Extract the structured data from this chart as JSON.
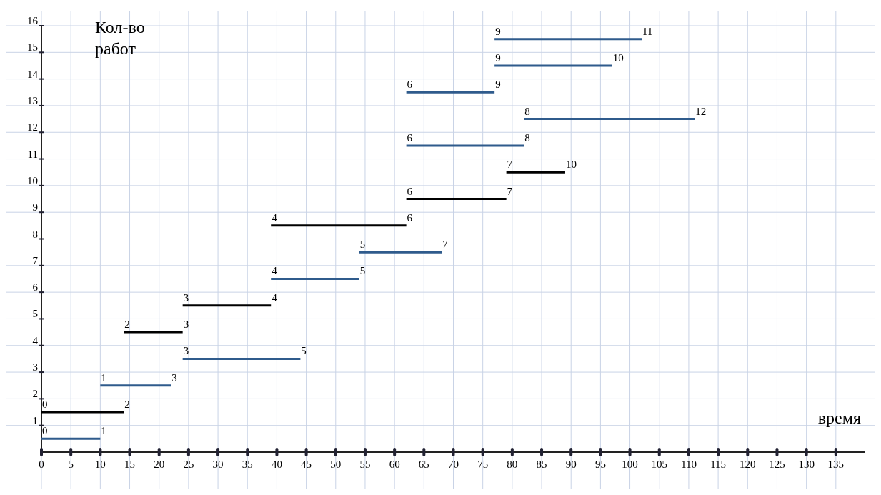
{
  "chart_data": {
    "type": "line",
    "xlabel": "время",
    "ylabel": "Кол-во работ",
    "xlim": [
      0,
      140
    ],
    "xticks": [
      0,
      5,
      10,
      15,
      20,
      25,
      30,
      35,
      40,
      45,
      50,
      55,
      60,
      65,
      70,
      75,
      80,
      85,
      90,
      95,
      100,
      105,
      110,
      115,
      120,
      125,
      130,
      135
    ],
    "ylim": [
      0,
      16
    ],
    "yticks": [
      1,
      2,
      3,
      4,
      5,
      6,
      7,
      8,
      9,
      10,
      11,
      12,
      13,
      14,
      15,
      16
    ],
    "grid": true,
    "marker": "none",
    "line_style": "solid",
    "series": [
      {
        "color": "#2f5b8c",
        "x": [
          0,
          10
        ],
        "values": [
          0.5,
          0.5
        ]
      },
      {
        "color": "#000000",
        "x": [
          0,
          14
        ],
        "values": [
          1.5,
          1.5
        ]
      },
      {
        "color": "#2f5b8c",
        "x": [
          10,
          22
        ],
        "values": [
          2.5,
          2.5
        ]
      },
      {
        "color": "#2f5b8c",
        "x": [
          24,
          44
        ],
        "values": [
          3.5,
          3.5
        ]
      },
      {
        "color": "#000000",
        "x": [
          14,
          24
        ],
        "values": [
          4.5,
          4.5
        ]
      },
      {
        "color": "#000000",
        "x": [
          24,
          39
        ],
        "values": [
          5.5,
          5.5
        ]
      },
      {
        "color": "#2f5b8c",
        "x": [
          39,
          54
        ],
        "values": [
          6.5,
          6.5
        ]
      },
      {
        "color": "#2f5b8c",
        "x": [
          54,
          68
        ],
        "values": [
          7.5,
          7.5
        ]
      },
      {
        "color": "#000000",
        "x": [
          39,
          62
        ],
        "values": [
          8.5,
          8.5
        ]
      },
      {
        "color": "#000000",
        "x": [
          62,
          79
        ],
        "values": [
          9.5,
          9.5
        ]
      },
      {
        "color": "#000000",
        "x": [
          79,
          89
        ],
        "values": [
          10.5,
          10.5
        ]
      },
      {
        "color": "#2f5b8c",
        "x": [
          62,
          82
        ],
        "values": [
          11.5,
          11.5
        ]
      },
      {
        "color": "#2f5b8c",
        "x": [
          82,
          111
        ],
        "values": [
          12.5,
          12.5
        ]
      },
      {
        "color": "#2f5b8c",
        "x": [
          62,
          77
        ],
        "values": [
          13.5,
          13.5
        ]
      },
      {
        "color": "#2f5b8c",
        "x": [
          77,
          97
        ],
        "values": [
          14.5,
          14.5
        ]
      },
      {
        "color": "#2f5b8c",
        "x": [
          77,
          102
        ],
        "values": [
          15.5,
          15.5
        ]
      }
    ],
    "annotations": [
      {
        "text": "0",
        "x": 0,
        "y": 0.5
      },
      {
        "text": "1",
        "x": 10,
        "y": 0.5
      },
      {
        "text": "0",
        "x": 0,
        "y": 1.5
      },
      {
        "text": "2",
        "x": 14,
        "y": 1.5
      },
      {
        "text": "1",
        "x": 10,
        "y": 2.5
      },
      {
        "text": "3",
        "x": 22,
        "y": 2.5
      },
      {
        "text": "3",
        "x": 24,
        "y": 3.5
      },
      {
        "text": "5",
        "x": 44,
        "y": 3.5
      },
      {
        "text": "2",
        "x": 14,
        "y": 4.5
      },
      {
        "text": "3",
        "x": 24,
        "y": 4.5
      },
      {
        "text": "3",
        "x": 24,
        "y": 5.5
      },
      {
        "text": "4",
        "x": 39,
        "y": 5.5
      },
      {
        "text": "4",
        "x": 39,
        "y": 6.5
      },
      {
        "text": "5",
        "x": 54,
        "y": 6.5
      },
      {
        "text": "5",
        "x": 54,
        "y": 7.5
      },
      {
        "text": "7",
        "x": 68,
        "y": 7.5
      },
      {
        "text": "4",
        "x": 39,
        "y": 8.5
      },
      {
        "text": "6",
        "x": 62,
        "y": 8.5
      },
      {
        "text": "6",
        "x": 62,
        "y": 9.5
      },
      {
        "text": "7",
        "x": 79,
        "y": 9.5
      },
      {
        "text": "7",
        "x": 79,
        "y": 10.5
      },
      {
        "text": "10",
        "x": 89,
        "y": 10.5
      },
      {
        "text": "6",
        "x": 62,
        "y": 11.5
      },
      {
        "text": "8",
        "x": 82,
        "y": 11.5
      },
      {
        "text": "8",
        "x": 82,
        "y": 12.5
      },
      {
        "text": "12",
        "x": 111,
        "y": 12.5
      },
      {
        "text": "6",
        "x": 62,
        "y": 13.5
      },
      {
        "text": "9",
        "x": 77,
        "y": 13.5
      },
      {
        "text": "9",
        "x": 77,
        "y": 14.5
      },
      {
        "text": "10",
        "x": 97,
        "y": 14.5
      },
      {
        "text": "9",
        "x": 77,
        "y": 15.5
      },
      {
        "text": "11",
        "x": 102,
        "y": 15.5
      }
    ]
  }
}
